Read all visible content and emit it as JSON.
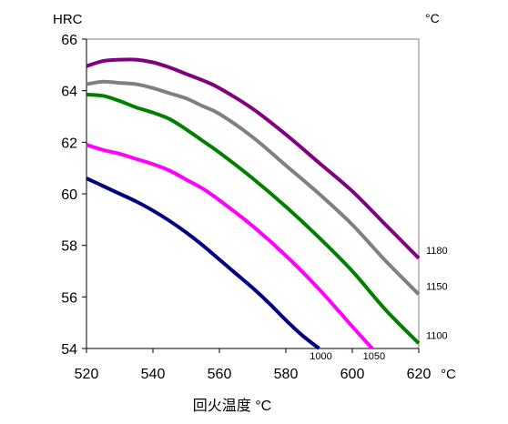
{
  "chart_data": {
    "type": "line",
    "title": "",
    "ylabel": "HRC",
    "xlabel": "回火温度 °C",
    "x_unit": "°C",
    "legend_unit": "°C",
    "xlim": [
      520,
      620
    ],
    "ylim": [
      54,
      66
    ],
    "xticks": [
      520,
      540,
      560,
      580,
      600,
      620
    ],
    "yticks": [
      54,
      56,
      58,
      60,
      62,
      64,
      66
    ],
    "grid": false,
    "series": [
      {
        "name": "1180",
        "color": "#800080",
        "x": [
          520,
          525,
          530,
          535,
          540,
          545,
          550,
          555,
          560,
          570,
          580,
          590,
          600,
          610,
          620
        ],
        "y": [
          64.95,
          65.15,
          65.2,
          65.2,
          65.1,
          64.9,
          64.65,
          64.4,
          64.1,
          63.3,
          62.3,
          61.2,
          60.1,
          58.8,
          57.5
        ]
      },
      {
        "name": "1150",
        "color": "#808080",
        "x": [
          520,
          525,
          530,
          535,
          540,
          545,
          550,
          555,
          560,
          570,
          580,
          590,
          600,
          610,
          620
        ],
        "y": [
          64.25,
          64.35,
          64.3,
          64.25,
          64.1,
          63.9,
          63.7,
          63.4,
          63.1,
          62.2,
          61.1,
          60.0,
          58.8,
          57.4,
          56.1
        ]
      },
      {
        "name": "1100",
        "color": "#008000",
        "x": [
          520,
          525,
          530,
          535,
          540,
          545,
          550,
          555,
          560,
          570,
          580,
          590,
          600,
          610,
          620
        ],
        "y": [
          63.85,
          63.8,
          63.6,
          63.35,
          63.15,
          62.9,
          62.5,
          62.05,
          61.6,
          60.6,
          59.5,
          58.3,
          57.0,
          55.5,
          54.2
        ]
      },
      {
        "name": "1050",
        "color": "#ff00ff",
        "x": [
          520,
          525,
          530,
          535,
          540,
          545,
          550,
          555,
          560,
          570,
          580,
          590,
          600,
          606
        ],
        "y": [
          61.9,
          61.7,
          61.55,
          61.35,
          61.15,
          60.9,
          60.55,
          60.2,
          59.75,
          58.75,
          57.6,
          56.3,
          54.85,
          54.0
        ]
      },
      {
        "name": "1000",
        "color": "#000080",
        "x": [
          520,
          525,
          530,
          535,
          540,
          545,
          550,
          555,
          560,
          565,
          570,
          575,
          580,
          585,
          590
        ],
        "y": [
          60.6,
          60.3,
          60.0,
          59.7,
          59.35,
          58.95,
          58.5,
          58.0,
          57.45,
          56.9,
          56.35,
          55.75,
          55.1,
          54.5,
          54.0
        ]
      }
    ]
  }
}
